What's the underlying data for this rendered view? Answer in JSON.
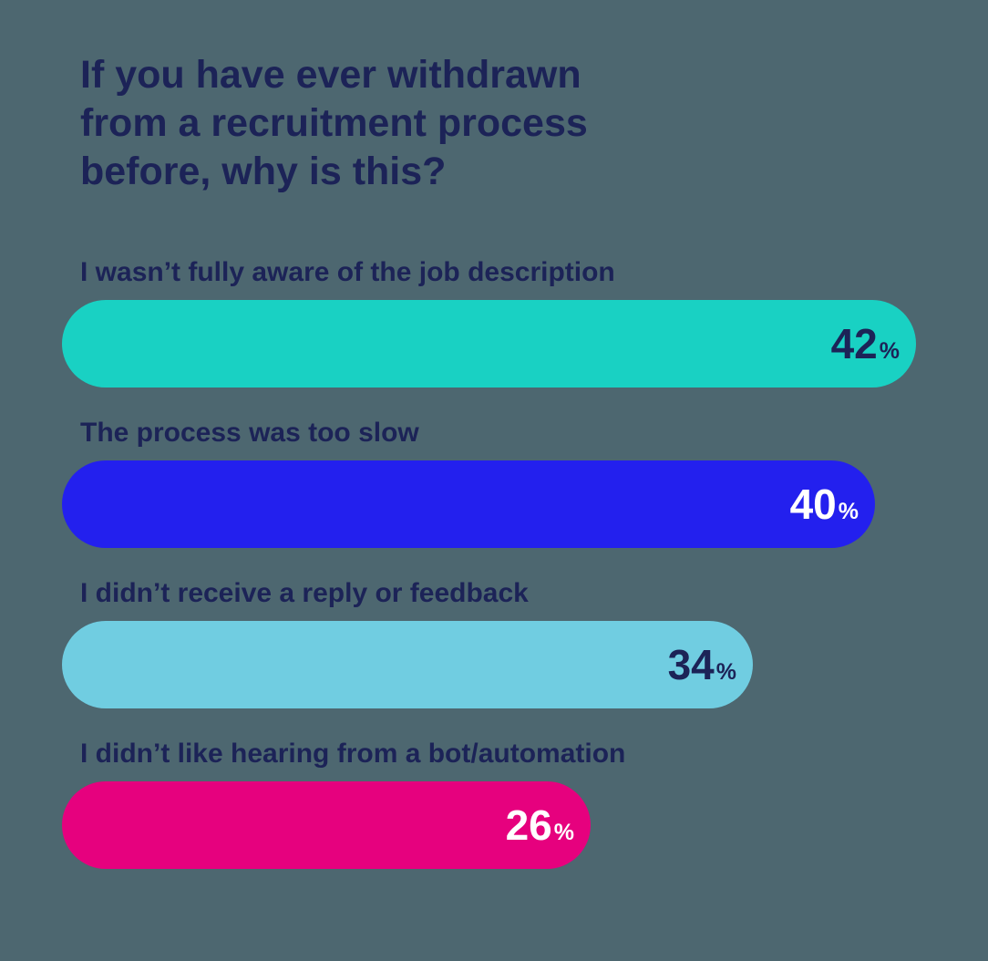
{
  "background_color": "#4d6770",
  "text_color": "#1c2357",
  "title_lines": [
    "If you have ever withdrawn",
    "from a recruitment process",
    "before, why is this?"
  ],
  "chart_data": {
    "type": "bar",
    "orientation": "horizontal",
    "title": "If you have ever withdrawn from a recruitment process before, why is this?",
    "unit": "%",
    "xlim": [
      0,
      45
    ],
    "grid": false,
    "legend": false,
    "categories": [
      "I wasn’t fully aware of the job description",
      "The process was too slow",
      "I didn’t receive a reply or feedback",
      "I didn’t like hearing from a bot/automation"
    ],
    "values": [
      42,
      40,
      34,
      26
    ],
    "items": [
      {
        "label": "I wasn’t fully aware of the job description",
        "value": 42,
        "bar_color": "#19d1c3",
        "value_color": "#1c2357",
        "value_weight": 700
      },
      {
        "label": "The process was too slow",
        "value": 40,
        "bar_color": "#2320ee",
        "value_color": "#ffffff",
        "value_weight": 500
      },
      {
        "label": "I didn’t receive a reply or feedback",
        "value": 34,
        "bar_color": "#70cde1",
        "value_color": "#1c2357",
        "value_weight": 700
      },
      {
        "label": "I didn’t like hearing from a bot/automation",
        "value": 26,
        "bar_color": "#e6017e",
        "value_color": "#ffffff",
        "value_weight": 700
      }
    ]
  }
}
